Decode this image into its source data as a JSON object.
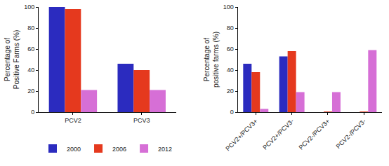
{
  "chart_data": [
    {
      "type": "bar",
      "y_label": "Percentage of Positive Farms (%)",
      "categories": [
        "PCV2",
        "PCV3"
      ],
      "series": [
        {
          "name": "2000",
          "color": "#2b2bbf",
          "values": [
            100,
            46
          ]
        },
        {
          "name": "2006",
          "color": "#e5391e",
          "values": [
            98,
            40
          ]
        },
        {
          "name": "2012",
          "color": "#d66fd6",
          "values": [
            21,
            21
          ]
        }
      ],
      "ylim": [
        0,
        100
      ],
      "yticks": [
        0,
        20,
        40,
        60,
        80,
        100
      ],
      "grid": false,
      "legend": "bottom left"
    },
    {
      "type": "bar",
      "y_label": "Percentage of positive farms (%)",
      "categories": [
        "PCV2+/PCV3+",
        "PCV2+/PCV3-",
        "PCV2-/PCV3+",
        "PCV2-/PCV3-"
      ],
      "series": [
        {
          "name": "2000",
          "color": "#2b2bbf",
          "values": [
            46,
            53,
            0,
            0
          ]
        },
        {
          "name": "2006",
          "color": "#e5391e",
          "values": [
            38,
            58,
            0.5,
            0.5
          ]
        },
        {
          "name": "2012",
          "color": "#d66fd6",
          "values": [
            3,
            19,
            19,
            59
          ]
        }
      ],
      "ylim": [
        0,
        100
      ],
      "yticks": [
        0,
        20,
        40,
        60,
        80,
        100
      ],
      "grid": false
    }
  ]
}
